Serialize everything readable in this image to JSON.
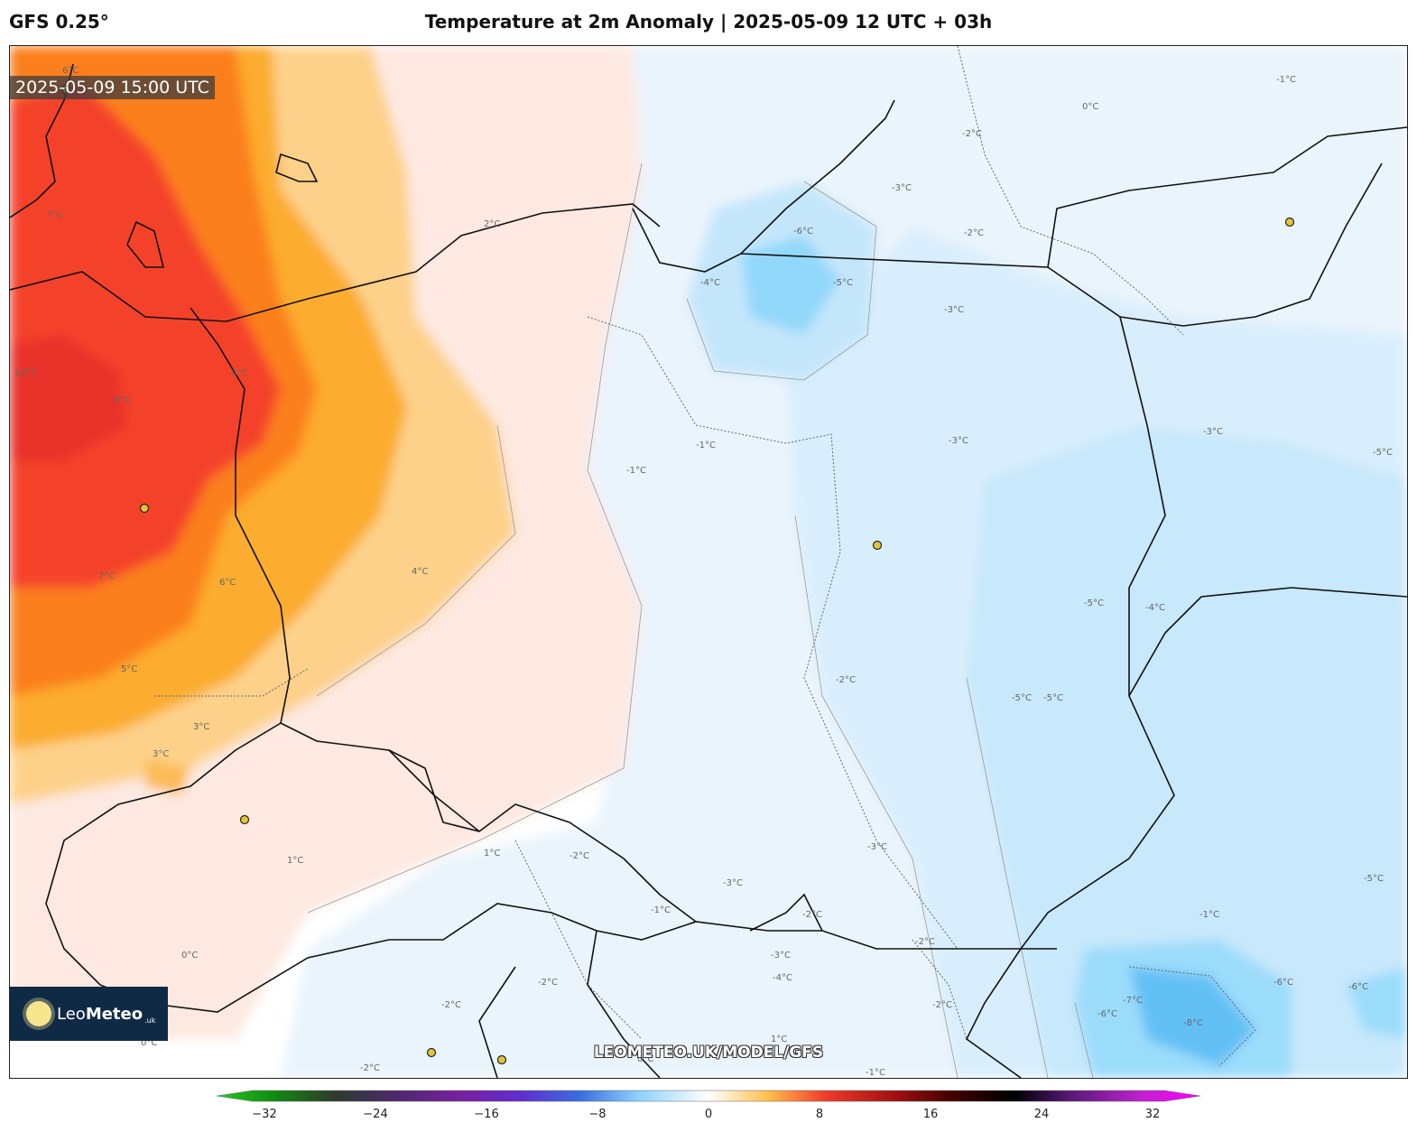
{
  "header": {
    "model": "GFS 0.25°",
    "title": "Temperature at 2m Anomaly | 2025-05-09 12 UTC + 03h"
  },
  "map": {
    "valid_time": "2025-05-09 15:00 UTC",
    "watermark": "LEOMETEO.UK/MODEL/GFS",
    "logo": {
      "brand_light": "Leo",
      "brand_bold": "Meteo",
      "tld": ".uk",
      "icon": "sun-icon"
    },
    "contour_labels": [
      "6°C",
      "7°C",
      "2°C",
      "9°C",
      "10°C",
      "6°C",
      "7°C",
      "6°C",
      "4°C",
      "5°C",
      "3°C",
      "3°C",
      "1°C",
      "1°C",
      "0°C",
      "0°C",
      "-1°C",
      "-1°C",
      "-2°C",
      "-2°C",
      "-2°C",
      "-2°C",
      "-2°C",
      "-1°C",
      "-1°C",
      "-2°C",
      "-2°C",
      "-3°C",
      "-3°C",
      "-3°C",
      "-3°C",
      "-3°C",
      "-3°C",
      "-4°C",
      "-4°C",
      "-4°C",
      "-5°C",
      "-5°C",
      "-5°C",
      "-5°C",
      "-5°C",
      "-5°C",
      "-6°C",
      "-6°C",
      "-6°C",
      "-6°C",
      "-7°C",
      "-8°C",
      "-2°C",
      "-1°C",
      "1°C",
      "-3°C",
      "0°C",
      "-1°C",
      "0°C",
      "-2°C",
      "-2°C"
    ]
  },
  "colorbar": {
    "ticks": [
      "−32",
      "−24",
      "−16",
      "−8",
      "0",
      "8",
      "16",
      "24",
      "32"
    ],
    "colors": {
      "cold_extreme": "#22cc22",
      "very_cold": "#7a1fa2",
      "cold": "#3a6fe0",
      "cool": "#8fd3ff",
      "neutral": "#ffffff",
      "warm": "#ffc04d",
      "hot": "#f03a2a",
      "very_hot": "#400000",
      "extreme": "#ff00ff"
    }
  }
}
